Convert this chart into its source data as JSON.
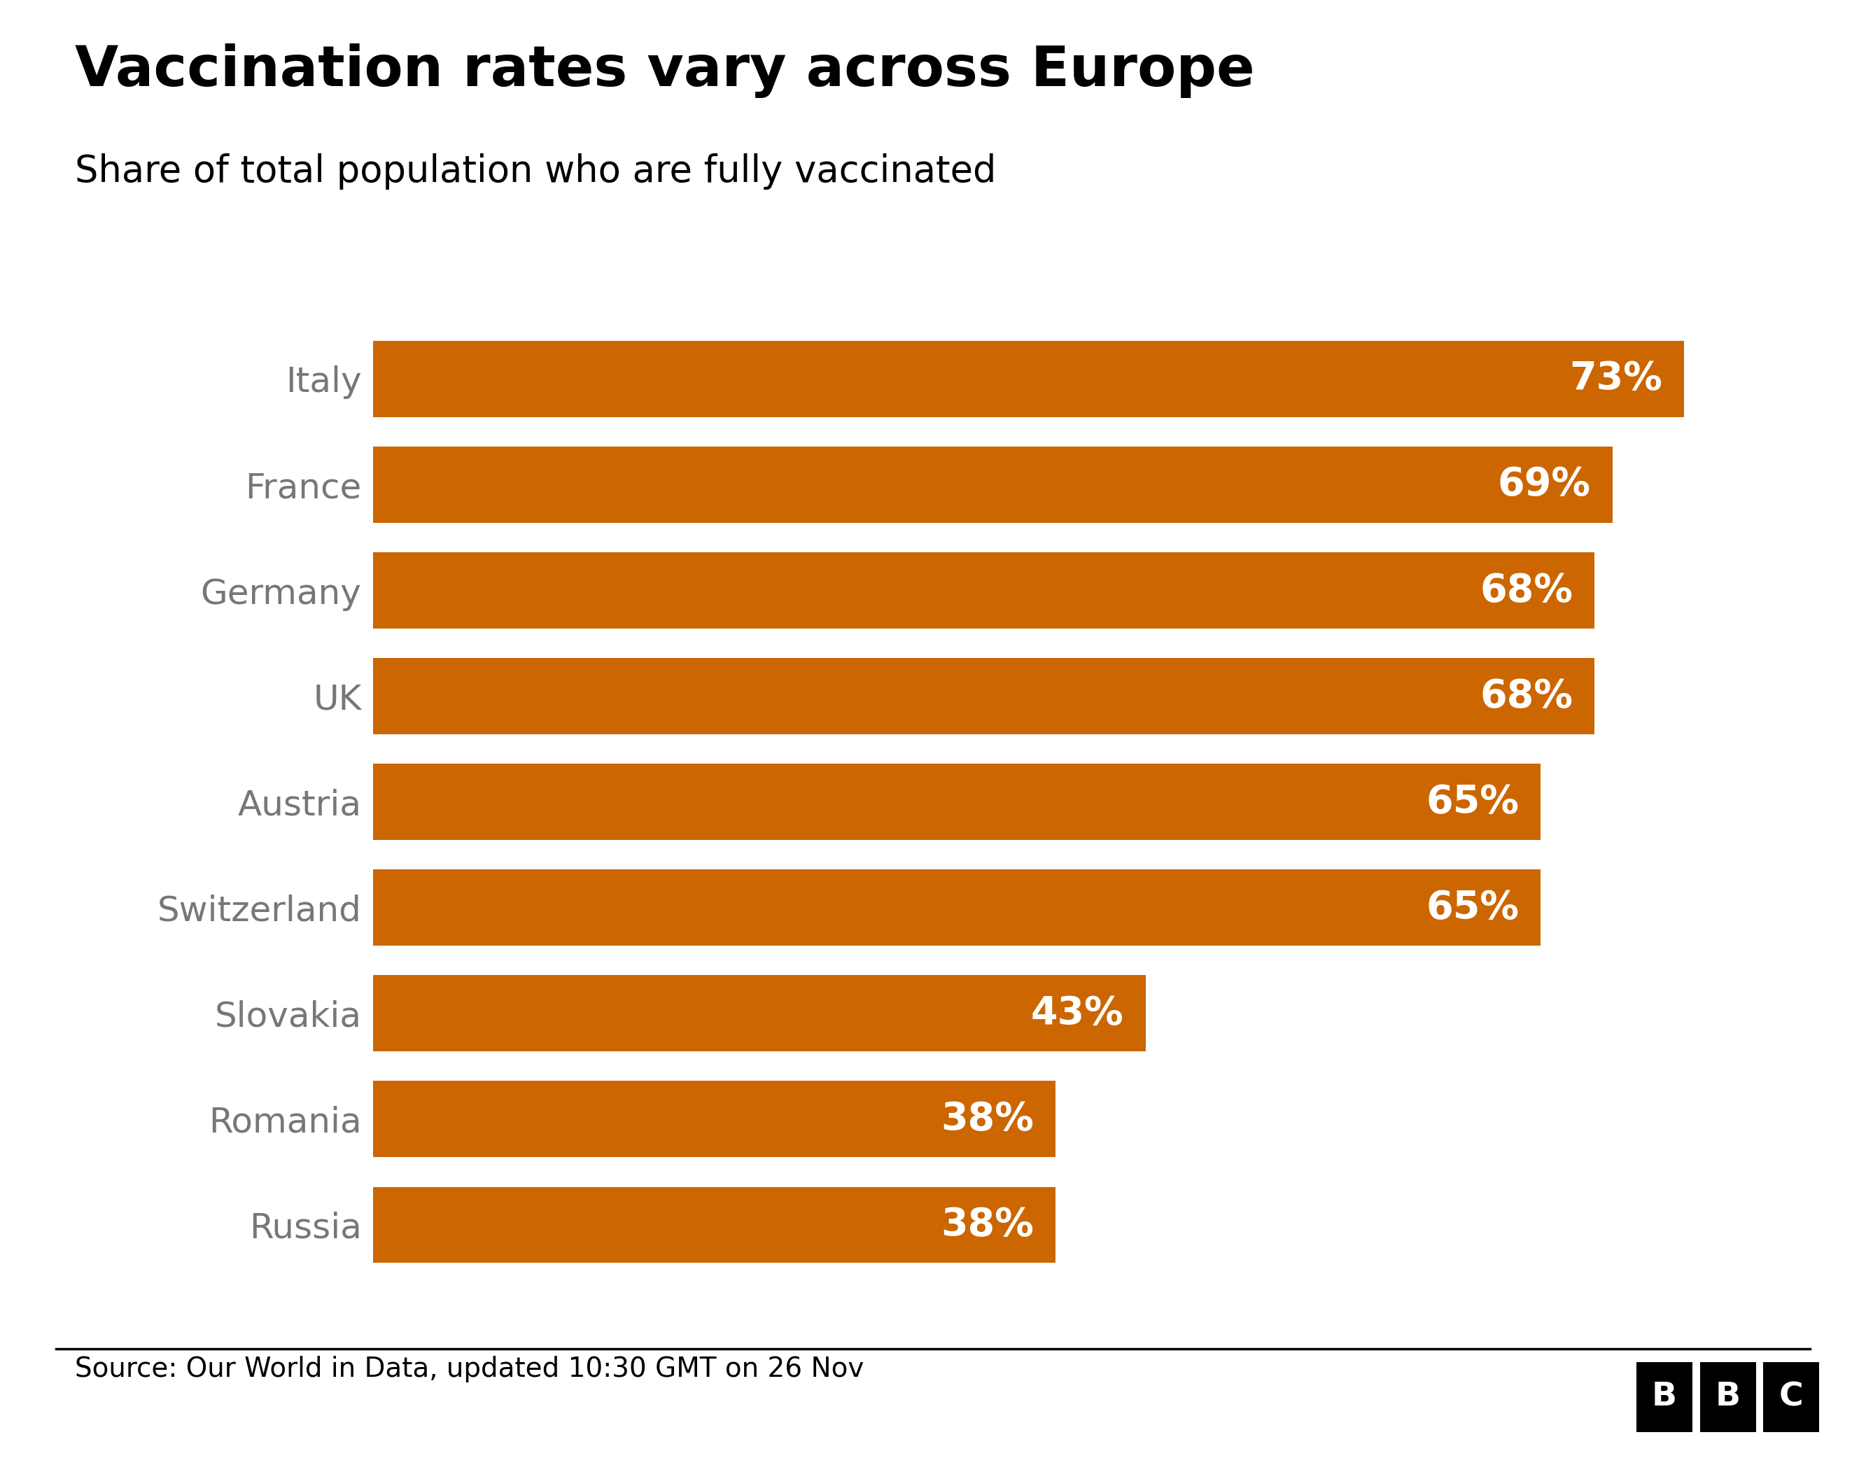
{
  "title": "Vaccination rates vary across Europe",
  "subtitle": "Share of total population who are fully vaccinated",
  "source": "Source: Our World in Data, updated 10:30 GMT on 26 Nov",
  "categories": [
    "Italy",
    "France",
    "Germany",
    "UK",
    "Austria",
    "Switzerland",
    "Slovakia",
    "Romania",
    "Russia"
  ],
  "values": [
    73,
    69,
    68,
    68,
    65,
    65,
    43,
    38,
    38
  ],
  "bar_color": "#CC6600",
  "label_color_inside": "#FFFFFF",
  "y_label_color": "#777777",
  "title_color": "#000000",
  "subtitle_color": "#000000",
  "source_color": "#000000",
  "background_color": "#FFFFFF",
  "title_fontsize": 58,
  "subtitle_fontsize": 38,
  "source_fontsize": 28,
  "bar_label_fontsize": 40,
  "y_tick_fontsize": 36,
  "xlim": [
    0,
    80
  ],
  "bbc_box_color": "#000000",
  "bbc_text_color": "#FFFFFF",
  "bar_height": 0.72,
  "bar_gap": 0.28
}
